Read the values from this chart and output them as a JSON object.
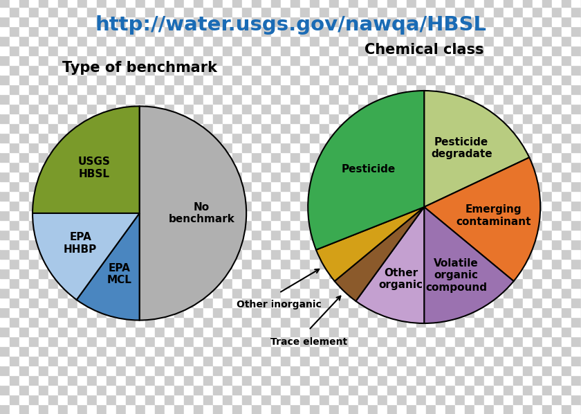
{
  "title": "http://water.usgs.gov/nawqa/HBSL",
  "title_color": "#1a6bb5",
  "pie1_title": "Type of benchmark",
  "pie1_labels": [
    "No\nbenchmark",
    "EPA\nMCL",
    "EPA\nHHBP",
    "USGS\nHBSL"
  ],
  "pie1_values": [
    50,
    10,
    15,
    25
  ],
  "pie1_colors": [
    "#b0b0b0",
    "#4a86c0",
    "#a8c8e8",
    "#7a9a2a"
  ],
  "pie1_startangle": 90,
  "pie1_label_radii": [
    0.58,
    0.6,
    0.62,
    0.6
  ],
  "pie2_title": "Chemical class",
  "pie2_labels": [
    "Pesticide\ndegradate",
    "Emerging\ncontaminant",
    "Volatile\norganic\ncompound",
    "Other\norganic",
    "Trace element",
    "Other inorganic",
    "Pesticide"
  ],
  "pie2_values": [
    18,
    18,
    14,
    10,
    4,
    5,
    31
  ],
  "pie2_colors": [
    "#b8cc80",
    "#e8742a",
    "#9b72b0",
    "#c4a0d0",
    "#8b5a2b",
    "#d4a017",
    "#3aaa50"
  ],
  "pie2_startangle": 90,
  "pie2_label_radii": [
    0.6,
    0.6,
    0.65,
    0.65,
    null,
    null,
    0.58
  ],
  "checker_size": 14,
  "checker_colors": [
    "#cccccc",
    "#ffffff"
  ],
  "font_size_title_main": 21,
  "font_size_pie_title": 15,
  "font_size_labels": 11,
  "font_size_arrow_labels": 10
}
